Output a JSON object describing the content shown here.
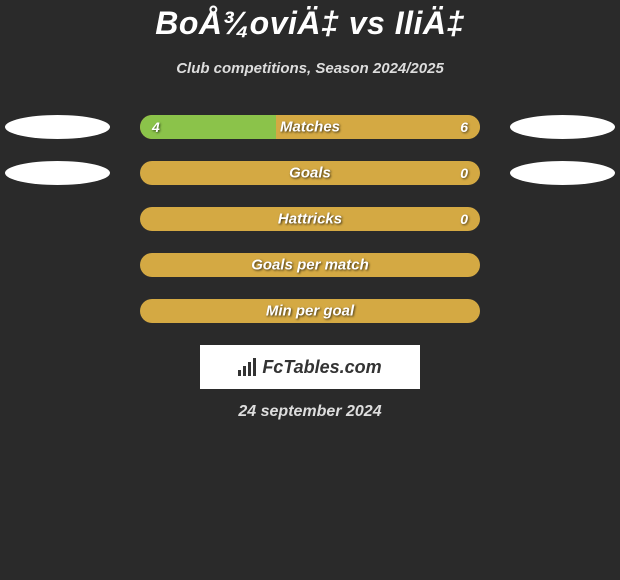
{
  "title": "BoÅ¾oviÄ‡ vs IliÄ‡",
  "subtitle": "Club competitions, Season 2024/2025",
  "date": "24 september 2024",
  "logo_text": "FcTables.com",
  "colors": {
    "left_bar": "#8bc34a",
    "right_bar": "#d4a943",
    "empty_bar": "#d4a943",
    "background": "#2a2a2a"
  },
  "stats": [
    {
      "label": "Matches",
      "left_value": "4",
      "right_value": "6",
      "left_pct": 40,
      "right_pct": 60,
      "show_left_badge": true,
      "show_right_badge": true,
      "show_left_val": true,
      "show_right_val": true
    },
    {
      "label": "Goals",
      "left_value": "0",
      "right_value": "0",
      "left_pct": 0,
      "right_pct": 0,
      "show_left_badge": true,
      "show_right_badge": true,
      "show_left_val": false,
      "show_right_val": true
    },
    {
      "label": "Hattricks",
      "left_value": "0",
      "right_value": "0",
      "left_pct": 0,
      "right_pct": 0,
      "show_left_badge": false,
      "show_right_badge": false,
      "show_left_val": false,
      "show_right_val": true
    },
    {
      "label": "Goals per match",
      "left_value": "",
      "right_value": "",
      "left_pct": 0,
      "right_pct": 0,
      "show_left_badge": false,
      "show_right_badge": false,
      "show_left_val": false,
      "show_right_val": false
    },
    {
      "label": "Min per goal",
      "left_value": "",
      "right_value": "",
      "left_pct": 0,
      "right_pct": 0,
      "show_left_badge": false,
      "show_right_badge": false,
      "show_left_val": false,
      "show_right_val": false
    }
  ]
}
